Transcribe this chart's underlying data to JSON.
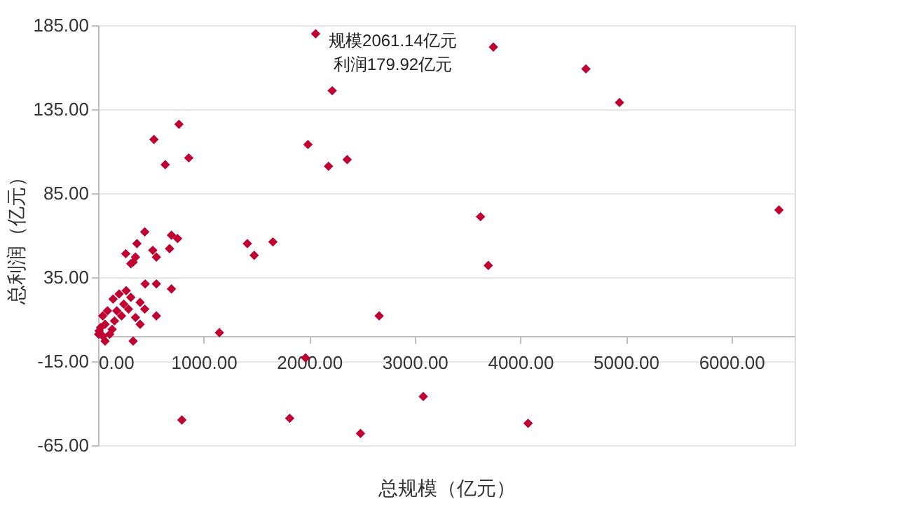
{
  "chart_data": {
    "type": "scatter",
    "xlabel": "总规模（亿元）",
    "ylabel": "总利润（亿元）",
    "x": [
      529,
      766,
      636,
      859,
      1988,
      2183,
      2360,
      2218,
      2061.14,
      3745,
      4622,
      4940,
      6451,
      3623,
      3697,
      2663,
      1149,
      1965,
      1414,
      1479,
      1656,
      794,
      1815,
      2486,
      3081,
      4074,
      442,
      695,
      753,
      368,
      262,
      518,
      677,
      332,
      310,
      552,
      354,
      446,
      552,
      695,
      266,
      199,
      310,
      142,
      243,
      398,
      89,
      177,
      288,
      442,
      552,
      44,
      354,
      398,
      66,
      155,
      10,
      44,
      110,
      66,
      332,
      222,
      133,
      23,
      5
    ],
    "values": [
      117,
      126,
      102,
      106,
      114,
      101,
      105,
      146,
      179.92,
      172,
      159,
      139,
      75,
      71,
      42,
      12,
      2,
      -13,
      55,
      48,
      56,
      -50,
      -49,
      -58,
      -36,
      -52,
      62,
      60,
      58,
      55,
      49,
      51,
      52,
      44,
      43,
      47,
      47,
      31,
      31,
      28,
      27,
      25,
      23,
      22,
      19,
      20,
      15,
      15,
      16,
      16,
      12,
      12,
      11,
      7,
      7,
      9,
      3,
      0,
      1,
      -3,
      -3,
      12,
      4,
      5,
      1
    ],
    "color": "#c00030",
    "marker": "diamond",
    "xlim": [
      0,
      6600
    ],
    "xticks": [
      {
        "value": 0,
        "label": "0.00"
      },
      {
        "value": 1000,
        "label": "1000.00"
      },
      {
        "value": 2000,
        "label": "2000.00"
      },
      {
        "value": 3000,
        "label": "3000.00"
      },
      {
        "value": 4000,
        "label": "4000.00"
      },
      {
        "value": 5000,
        "label": "5000.00"
      },
      {
        "value": 6000,
        "label": "6000.00"
      }
    ],
    "ylim": [
      -65,
      185
    ],
    "yticks": [
      {
        "value": -65,
        "label": "-65.00"
      },
      {
        "value": -15,
        "label": "-15.00"
      },
      {
        "value": 35,
        "label": "35.00"
      },
      {
        "value": 85,
        "label": "85.00"
      },
      {
        "value": 135,
        "label": "135.00"
      },
      {
        "value": 185,
        "label": "185.00"
      }
    ],
    "grid": "y",
    "annotations": [
      {
        "text": "规模2061.14亿元",
        "x": 2061.14,
        "y": 179.92
      },
      {
        "text": "利润179.92亿元",
        "x": 2061.14,
        "y": 179.92
      }
    ]
  }
}
